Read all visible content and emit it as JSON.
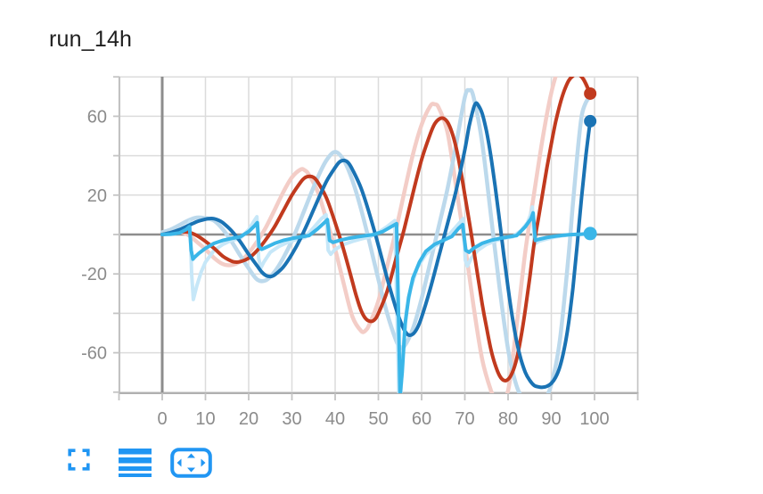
{
  "title": "run_14h",
  "toolbar": {
    "buttons": [
      {
        "name": "fullscreen-icon",
        "label": "fullscreen"
      },
      {
        "name": "horizontal-lines-icon",
        "label": "view runs"
      },
      {
        "name": "pan-arrows-icon",
        "label": "pan / fit"
      }
    ],
    "icon_color": "#2196f3"
  },
  "chart_data": {
    "type": "line",
    "title": "run_14h",
    "xlabel": "",
    "ylabel": "",
    "x_range": [
      -10,
      110
    ],
    "y_range": [
      -80.5,
      80.5
    ],
    "grid": true,
    "legend_position": "none",
    "x_tick_values": [
      0,
      10,
      20,
      30,
      40,
      50,
      60,
      70,
      80,
      90,
      100
    ],
    "x_tick_labels": [
      "0",
      "10",
      "20",
      "30",
      "40",
      "50",
      "60",
      "70",
      "80",
      "90",
      "100"
    ],
    "y_tick_values": [
      60,
      20,
      -20,
      -60
    ],
    "y_tick_labels": [
      "60",
      "20",
      "-20",
      "-60"
    ],
    "x_grid_step": 10,
    "y_grid_step": 20,
    "style": {
      "grid_color": "#dcdcdc",
      "zero_line_color": "#8d8d8d",
      "frame_color": "#c2c2c2",
      "bottom_axis_color": "#b0b0b0",
      "tick_color": "#c4c4c4",
      "label_color": "#8b8b8b",
      "background": "#ffffff"
    },
    "series": [
      {
        "name": "red-original",
        "color": "#f3cdc7",
        "width": 4.5,
        "smooth": true,
        "x": [
          0,
          2,
          4,
          6,
          8,
          10,
          12,
          14,
          16,
          18,
          20,
          22,
          24,
          26,
          28,
          30,
          32,
          33,
          34,
          36,
          38,
          40,
          42,
          44,
          46,
          47,
          48,
          50,
          52,
          54,
          56,
          58,
          60,
          62,
          63,
          64,
          66,
          68,
          70,
          72,
          74,
          76,
          77,
          78,
          80,
          82,
          84,
          86,
          88,
          90,
          92,
          94,
          96,
          98,
          99
        ],
        "y": [
          0.7,
          1.3,
          1.3,
          -0.2,
          -3.7,
          -7.5,
          -11.9,
          -15,
          -15.5,
          -13.7,
          -9.4,
          -3.4,
          3.7,
          12.5,
          21.5,
          29,
          33,
          32.6,
          30.1,
          21.6,
          7.4,
          -7.4,
          -25.1,
          -41.7,
          -48.9,
          -48.8,
          -45.2,
          -33.7,
          -16.4,
          1.6,
          21.5,
          40.7,
          55.7,
          65.2,
          66.1,
          64.1,
          51.7,
          23.9,
          -4.7,
          -36.1,
          -63.2,
          -78.9,
          -82.6,
          -82.4,
          -79.2,
          -45.7,
          -8.5,
          20.6,
          48.8,
          71.9,
          86.2,
          91,
          86.5,
          76.2,
          70.6
        ]
      },
      {
        "name": "blue-original",
        "color": "#bcd9ec",
        "width": 4.5,
        "smooth": true,
        "x": [
          0,
          2,
          4,
          6,
          8,
          10,
          12,
          14,
          16,
          18,
          20,
          22,
          24,
          26,
          28,
          30,
          32,
          34,
          36,
          38,
          40,
          42,
          44,
          46,
          48,
          50,
          52,
          54,
          55,
          56,
          58,
          60,
          62,
          64,
          66,
          68,
          70,
          71,
          72,
          74,
          76,
          78,
          80,
          82,
          84,
          86,
          88,
          90,
          92,
          94,
          95,
          96,
          97,
          98,
          99
        ],
        "y": [
          1.1,
          2.6,
          4.8,
          7.1,
          8.6,
          8.3,
          7,
          2.7,
          -3.4,
          -10.5,
          -17.2,
          -22.9,
          -23.2,
          -18.9,
          -11.9,
          -3.1,
          7.4,
          18.5,
          29.1,
          37.7,
          41.9,
          37.7,
          27.4,
          12.8,
          -4.5,
          -22.8,
          -39.8,
          -53.2,
          -57,
          -56.7,
          -47.7,
          -32.5,
          -14.1,
          4.4,
          23.3,
          45.9,
          69.7,
          73.2,
          69.9,
          46.6,
          10.3,
          -26.4,
          -58.2,
          -77,
          -85.1,
          -86.7,
          -84.9,
          -76.2,
          -53.3,
          -10.5,
          15.9,
          40.1,
          59.9,
          67,
          70
        ]
      },
      {
        "name": "cyan-original",
        "color": "#c6e7f8",
        "width": 4,
        "smooth": false,
        "x": [
          0,
          3,
          5,
          6,
          6.4,
          6.8,
          7.2,
          8,
          9,
          10,
          12,
          14,
          16,
          18,
          20,
          21.3,
          21.9,
          22.3,
          22.8,
          23.5,
          25,
          27,
          29,
          31,
          33,
          35,
          36.8,
          37.9,
          38.4,
          39,
          40,
          42,
          44,
          46,
          48,
          50,
          52,
          53.8,
          54.3,
          54.8,
          55.2,
          55.8,
          56.5,
          57.5,
          59,
          61,
          63,
          65,
          67,
          68.8,
          69.6,
          70.1,
          70.6,
          71.5,
          73,
          75,
          77,
          79,
          81,
          83,
          84.5,
          85.2,
          85.6,
          86.1,
          87,
          89,
          91,
          93,
          95,
          97,
          99
        ],
        "y": [
          0,
          0.5,
          2,
          5,
          6.5,
          -20,
          -33,
          -26,
          -19,
          -14,
          -8,
          -5,
          -3,
          -2,
          2.5,
          7,
          9,
          -12,
          -17,
          -14,
          -9,
          -6,
          -4,
          -2.5,
          -1.5,
          3.5,
          8,
          10,
          -8,
          -10,
          -7.5,
          -5,
          -3.5,
          -2.2,
          -1.2,
          1,
          4,
          7,
          -40,
          -86,
          -80,
          -56,
          -39,
          -27,
          -17,
          -10,
          -6,
          -3.5,
          1.5,
          6,
          8,
          -13,
          -16,
          -12,
          -8,
          -5,
          -3.2,
          -2,
          -1.2,
          2,
          6,
          10,
          14,
          -5,
          -3.5,
          -2.2,
          -1.2,
          -0.5,
          0,
          0.2,
          0.5
        ]
      },
      {
        "name": "red-smoothed",
        "color": "#c13a1e",
        "width": 4,
        "smooth": true,
        "marker": {
          "x": 99,
          "y": 71.5,
          "r": 7
        },
        "x": [
          0,
          2,
          4,
          6,
          8,
          10,
          12,
          14,
          16,
          17,
          18,
          20,
          22,
          24,
          26,
          28,
          30,
          32,
          33,
          34,
          35,
          36,
          38,
          40,
          42,
          44,
          45,
          46,
          47,
          48,
          49,
          50,
          52,
          54,
          56,
          58,
          60,
          62,
          63,
          64,
          65,
          66,
          67,
          68,
          69,
          70,
          71,
          72,
          73,
          74,
          75,
          76,
          77,
          78,
          79,
          80,
          81,
          82,
          83,
          84,
          85,
          86,
          87,
          88,
          89,
          90,
          91,
          92,
          93,
          94,
          95,
          96,
          97,
          98,
          99
        ],
        "y": [
          0,
          0.7,
          1.2,
          1.2,
          -0.5,
          -3.5,
          -7,
          -11,
          -13.5,
          -14,
          -13.8,
          -12,
          -8,
          -2.5,
          4,
          12,
          20,
          26.5,
          28.8,
          29.5,
          29,
          26.5,
          18.5,
          6,
          -8,
          -24,
          -32,
          -38.5,
          -42.5,
          -44,
          -43.5,
          -40,
          -29,
          -13,
          3,
          21,
          38,
          51,
          56,
          58.5,
          59,
          57,
          52,
          44,
          33,
          20,
          7,
          -7,
          -21,
          -35,
          -47,
          -58,
          -66,
          -71.5,
          -74,
          -73.5,
          -70,
          -63,
          -52,
          -38,
          -22,
          -5,
          8,
          21,
          34,
          46,
          57,
          66,
          73,
          78,
          80.5,
          81.5,
          80,
          76.5,
          71.5
        ]
      },
      {
        "name": "blue-smoothed",
        "color": "#1a73b4",
        "width": 4,
        "smooth": true,
        "marker": {
          "x": 99,
          "y": 57.5,
          "r": 7
        },
        "x": [
          0,
          2,
          4,
          6,
          8,
          10,
          11,
          12,
          13,
          14,
          16,
          18,
          20,
          22,
          23,
          24,
          25,
          26,
          28,
          30,
          32,
          34,
          36,
          38,
          40,
          41,
          42,
          43,
          44,
          46,
          48,
          50,
          52,
          54,
          55,
          56,
          57,
          58,
          59,
          60,
          62,
          64,
          66,
          68,
          70,
          71,
          72,
          72.5,
          73,
          74,
          75,
          76,
          77,
          78,
          79,
          80,
          81,
          82,
          83,
          84,
          85,
          86,
          87,
          88,
          89,
          90,
          91,
          92,
          93,
          94,
          95,
          96,
          97,
          98,
          99
        ],
        "y": [
          0,
          1,
          2.5,
          4.5,
          6.5,
          7.8,
          8.1,
          8,
          7.3,
          6,
          2,
          -3.5,
          -10,
          -16,
          -19,
          -20.8,
          -21.3,
          -20.5,
          -16.5,
          -10,
          -2,
          7.5,
          17.5,
          27,
          34,
          36.8,
          37.6,
          36.5,
          33,
          23.5,
          10,
          -5.5,
          -22,
          -37,
          -43.5,
          -48.5,
          -51,
          -50.5,
          -47.5,
          -42,
          -27.5,
          -11,
          5.5,
          22.5,
          43,
          55,
          64,
          66.5,
          66,
          61.5,
          52.5,
          40,
          24.5,
          7.5,
          -10,
          -27,
          -42,
          -54.5,
          -63.5,
          -70,
          -74,
          -76.5,
          -77.3,
          -77.5,
          -77,
          -75.5,
          -72.5,
          -67,
          -58,
          -45,
          -27,
          -5,
          19,
          40,
          57.5
        ]
      },
      {
        "name": "cyan-smoothed",
        "color": "#3ab6e8",
        "width": 4,
        "smooth": false,
        "marker": {
          "x": 99,
          "y": 0.5,
          "r": 7.5
        },
        "x": [
          0,
          2,
          4,
          5.5,
          6.3,
          6.7,
          7.1,
          7.5,
          8.5,
          10,
          12,
          14,
          16,
          18,
          20,
          21.4,
          22,
          22.4,
          23,
          24,
          26,
          28,
          30,
          32,
          34,
          36,
          37.5,
          38.2,
          38.7,
          39.5,
          41,
          43,
          45,
          47,
          49,
          51,
          53,
          54.2,
          54.7,
          55,
          55.5,
          56.2,
          57,
          58,
          59.5,
          61,
          63,
          65,
          67,
          68.5,
          69.5,
          70.2,
          71,
          72,
          74,
          76,
          78,
          80,
          82,
          84,
          85.3,
          85.8,
          86.3,
          87,
          89,
          91,
          93,
          95,
          97,
          99
        ],
        "y": [
          0,
          0.2,
          0.8,
          2.5,
          4,
          -8,
          -12.5,
          -11.5,
          -9.5,
          -7,
          -4.5,
          -3,
          -2,
          -1.2,
          1.5,
          4.5,
          6,
          -6,
          -7.5,
          -6.5,
          -4.5,
          -3,
          -2,
          -1.2,
          -0.5,
          3,
          6,
          7.5,
          -3,
          -4,
          -3,
          -2,
          -1.2,
          -0.6,
          0,
          1.5,
          4,
          5.5,
          -45,
          -82,
          -70,
          -45,
          -32,
          -22,
          -14,
          -8.5,
          -5,
          -3,
          -1,
          3,
          5,
          -8,
          -9,
          -7,
          -4.5,
          -3,
          -2,
          -1.2,
          -0.5,
          4,
          8,
          11,
          -3,
          -2.5,
          -1.5,
          -0.8,
          -0.3,
          0,
          0.2,
          0.5
        ]
      }
    ]
  }
}
